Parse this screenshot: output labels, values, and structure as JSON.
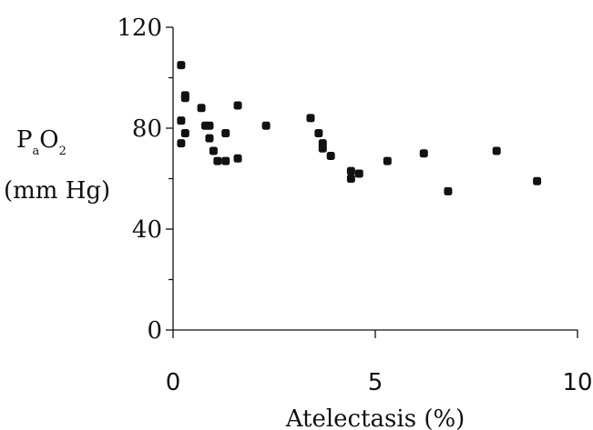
{
  "chart_data": {
    "type": "scatter",
    "title": "",
    "xlabel": "Atelectasis (%)",
    "ylabel": {
      "line1_parts": [
        "P",
        "a",
        "O",
        "2"
      ],
      "line2": "(mm Hg)"
    },
    "xlim": [
      0,
      10
    ],
    "ylim": [
      0,
      120
    ],
    "xticks": [
      "0",
      "5",
      "10"
    ],
    "yticks": [
      "0",
      "40",
      "80",
      "120"
    ],
    "grid": false,
    "legend": "none",
    "points": [
      {
        "x": 0.2,
        "y": 105
      },
      {
        "x": 0.2,
        "y": 83
      },
      {
        "x": 0.2,
        "y": 74
      },
      {
        "x": 0.3,
        "y": 93
      },
      {
        "x": 0.3,
        "y": 92
      },
      {
        "x": 0.3,
        "y": 78
      },
      {
        "x": 0.7,
        "y": 88
      },
      {
        "x": 0.8,
        "y": 81
      },
      {
        "x": 0.9,
        "y": 81
      },
      {
        "x": 0.9,
        "y": 76
      },
      {
        "x": 1.0,
        "y": 71
      },
      {
        "x": 1.1,
        "y": 67
      },
      {
        "x": 1.3,
        "y": 67
      },
      {
        "x": 1.3,
        "y": 78
      },
      {
        "x": 1.6,
        "y": 89
      },
      {
        "x": 1.6,
        "y": 68
      },
      {
        "x": 2.3,
        "y": 81
      },
      {
        "x": 3.4,
        "y": 84
      },
      {
        "x": 3.6,
        "y": 78
      },
      {
        "x": 3.7,
        "y": 74
      },
      {
        "x": 3.7,
        "y": 72
      },
      {
        "x": 3.9,
        "y": 69
      },
      {
        "x": 4.4,
        "y": 63
      },
      {
        "x": 4.4,
        "y": 60
      },
      {
        "x": 4.6,
        "y": 62
      },
      {
        "x": 5.3,
        "y": 67
      },
      {
        "x": 6.2,
        "y": 70
      },
      {
        "x": 6.8,
        "y": 55
      },
      {
        "x": 8.0,
        "y": 71
      },
      {
        "x": 9.0,
        "y": 59
      }
    ]
  }
}
